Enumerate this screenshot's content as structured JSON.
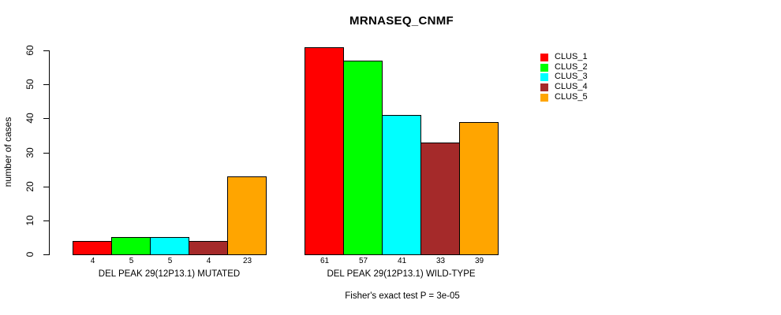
{
  "chart_data": {
    "type": "bar",
    "title": "MRNASEQ_CNMF",
    "xlabel": "",
    "ylabel": "number of cases",
    "ylim": [
      0,
      60
    ],
    "yticks": [
      0,
      10,
      20,
      30,
      40,
      50,
      60
    ],
    "grid": false,
    "categories": [
      "DEL PEAK 29(12P13.1) MUTATED",
      "DEL PEAK 29(12P13.1) WILD-TYPE"
    ],
    "series": [
      {
        "name": "CLUS_1",
        "color": "#FF0000",
        "values": [
          4,
          61
        ]
      },
      {
        "name": "CLUS_2",
        "color": "#00FF00",
        "values": [
          5,
          57
        ]
      },
      {
        "name": "CLUS_3",
        "color": "#00FFFF",
        "values": [
          5,
          41
        ]
      },
      {
        "name": "CLUS_4",
        "color": "#A52A2A",
        "values": [
          4,
          33
        ]
      },
      {
        "name": "CLUS_5",
        "color": "#FFA500",
        "values": [
          23,
          39
        ]
      }
    ],
    "show_bar_values": true,
    "legend": {
      "position": "right",
      "entries": [
        "CLUS_1",
        "CLUS_2",
        "CLUS_3",
        "CLUS_4",
        "CLUS_5"
      ]
    },
    "annotation": "Fisher's exact test P = 3e-05"
  }
}
